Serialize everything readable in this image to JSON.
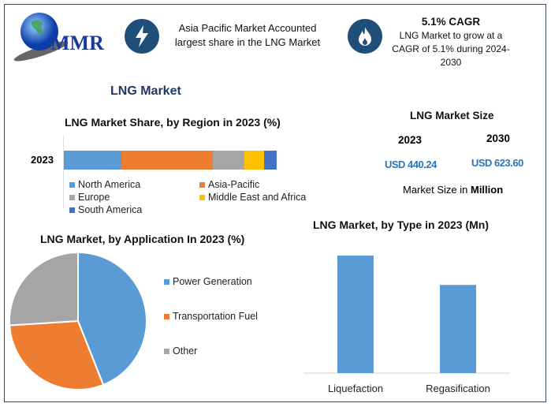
{
  "logo": {
    "text": "MMR"
  },
  "header": {
    "info1": {
      "icon": "lightning-icon",
      "text": "Asia Pacific Market Accounted largest share in the LNG Market"
    },
    "info2": {
      "icon": "flame-icon",
      "title": "5.1% CAGR",
      "text": "LNG Market to grow at a CAGR of 5.1% during 2024-2030"
    }
  },
  "main_title": "LNG Market",
  "market_size": {
    "title": "LNG Market Size",
    "year1": "2023",
    "value1": "USD 440.24",
    "year2": "2030",
    "value2": "USD 623.60",
    "note_prefix": "Market Size in ",
    "note_bold": "Million"
  },
  "colors": {
    "blue": "#5b9bd5",
    "orange": "#ed7d31",
    "gray": "#a5a5a5",
    "yellow": "#ffc000",
    "darkblue": "#4472c4",
    "navy": "#1f4e79"
  },
  "chart_data": [
    {
      "type": "bar",
      "orientation": "horizontal-stacked",
      "title": "LNG Market Share, by Region in 2023 (%)",
      "categories": [
        "2023"
      ],
      "series": [
        {
          "name": "North America",
          "values": [
            27
          ],
          "color": "#5b9bd5"
        },
        {
          "name": "Asia-Pacific",
          "values": [
            43
          ],
          "color": "#ed7d31"
        },
        {
          "name": "Europe",
          "values": [
            15
          ],
          "color": "#a5a5a5"
        },
        {
          "name": "Middle East and Africa",
          "values": [
            9
          ],
          "color": "#ffc000"
        },
        {
          "name": "South America",
          "values": [
            6
          ],
          "color": "#4472c4"
        }
      ],
      "legend": "bottom"
    },
    {
      "type": "pie",
      "title": "LNG Market, by Application In 2023 (%)",
      "labels": [
        "Power Generation",
        "Transportation Fuel",
        "Other"
      ],
      "values": [
        44,
        30,
        26
      ],
      "colors": [
        "#5b9bd5",
        "#ed7d31",
        "#a5a5a5"
      ],
      "legend": "right"
    },
    {
      "type": "bar",
      "title": "LNG Market, by Type in 2023 (Mn)",
      "categories": [
        "Liquefaction",
        "Regasification"
      ],
      "values": [
        100,
        75
      ],
      "color": "#5b9bd5",
      "grid": false
    }
  ]
}
